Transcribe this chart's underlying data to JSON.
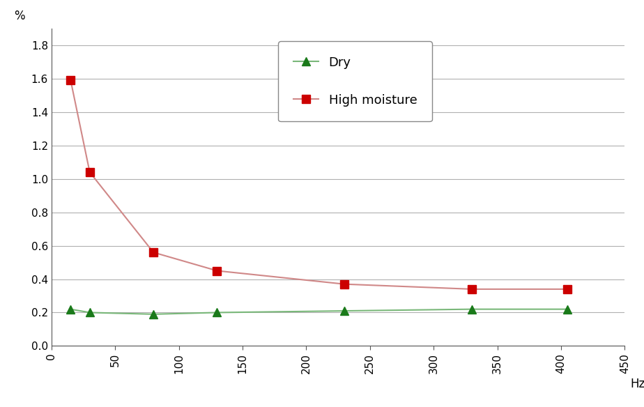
{
  "dry_x": [
    15,
    30,
    80,
    130,
    230,
    330,
    405
  ],
  "dry_y": [
    0.22,
    0.2,
    0.19,
    0.2,
    0.21,
    0.22,
    0.22
  ],
  "moisture_x": [
    15,
    30,
    80,
    130,
    230,
    330,
    405
  ],
  "moisture_y": [
    1.59,
    1.04,
    0.56,
    0.45,
    0.37,
    0.34,
    0.34
  ],
  "dry_marker_color": "#1a7a1a",
  "dry_line_color": "#7ab87a",
  "moisture_marker_color": "#cc0000",
  "moisture_line_color": "#d08888",
  "ylabel": "%",
  "xlabel": "Hz",
  "xlim": [
    0,
    450
  ],
  "ylim": [
    0.0,
    1.9
  ],
  "yticks": [
    0.0,
    0.2,
    0.4,
    0.6,
    0.8,
    1.0,
    1.2,
    1.4,
    1.6,
    1.8
  ],
  "xticks": [
    0,
    50,
    100,
    150,
    200,
    250,
    300,
    350,
    400,
    450
  ],
  "legend_dry": "Dry",
  "legend_moisture": "High moisture",
  "bg_color": "#ffffff",
  "grid_color": "#b0b0b0",
  "title_fontsize": 12,
  "axis_fontsize": 12,
  "tick_fontsize": 11,
  "legend_fontsize": 13,
  "marker_size": 8,
  "line_width": 1.5
}
